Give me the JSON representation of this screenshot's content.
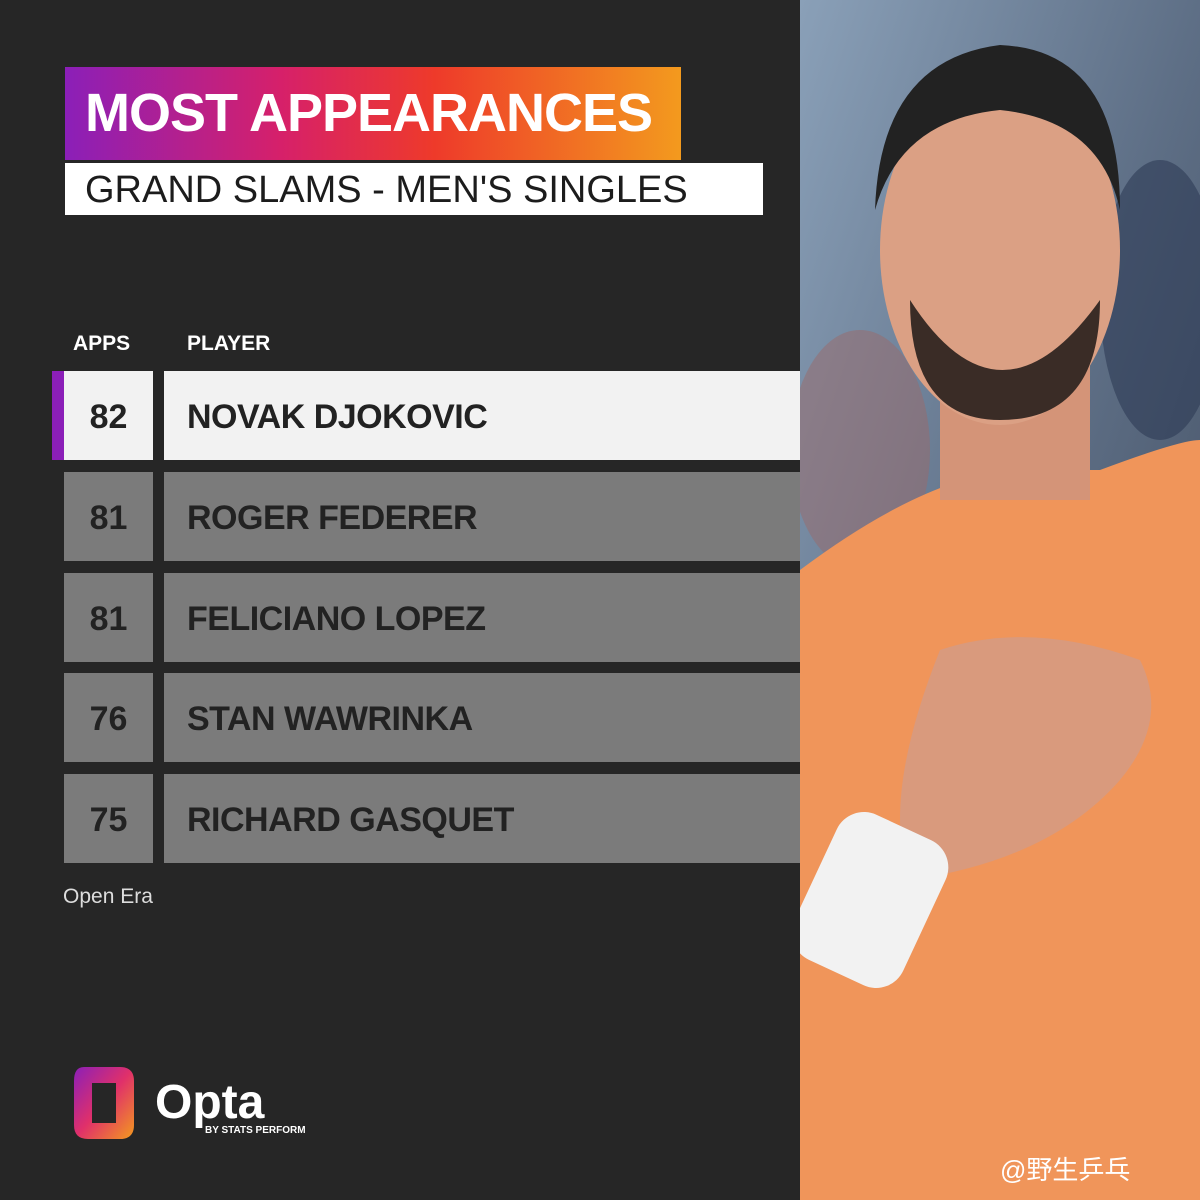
{
  "header": {
    "title": "MOST APPEARANCES",
    "subtitle": "GRAND SLAMS - MEN'S SINGLES"
  },
  "table": {
    "columns": [
      "APPS",
      "PLAYER"
    ],
    "rows": [
      [
        82,
        "NOVAK DJOKOVIC"
      ],
      [
        81,
        "ROGER FEDERER"
      ],
      [
        81,
        "FELICIANO LOPEZ"
      ],
      [
        76,
        "STAN WAWRINKA"
      ],
      [
        75,
        "RICHARD GASQUET"
      ]
    ]
  },
  "note": "Open Era",
  "logo": {
    "name": "Opta",
    "tagline": "BY STATS PERFORM"
  },
  "watermark": "@野生乒乓"
}
